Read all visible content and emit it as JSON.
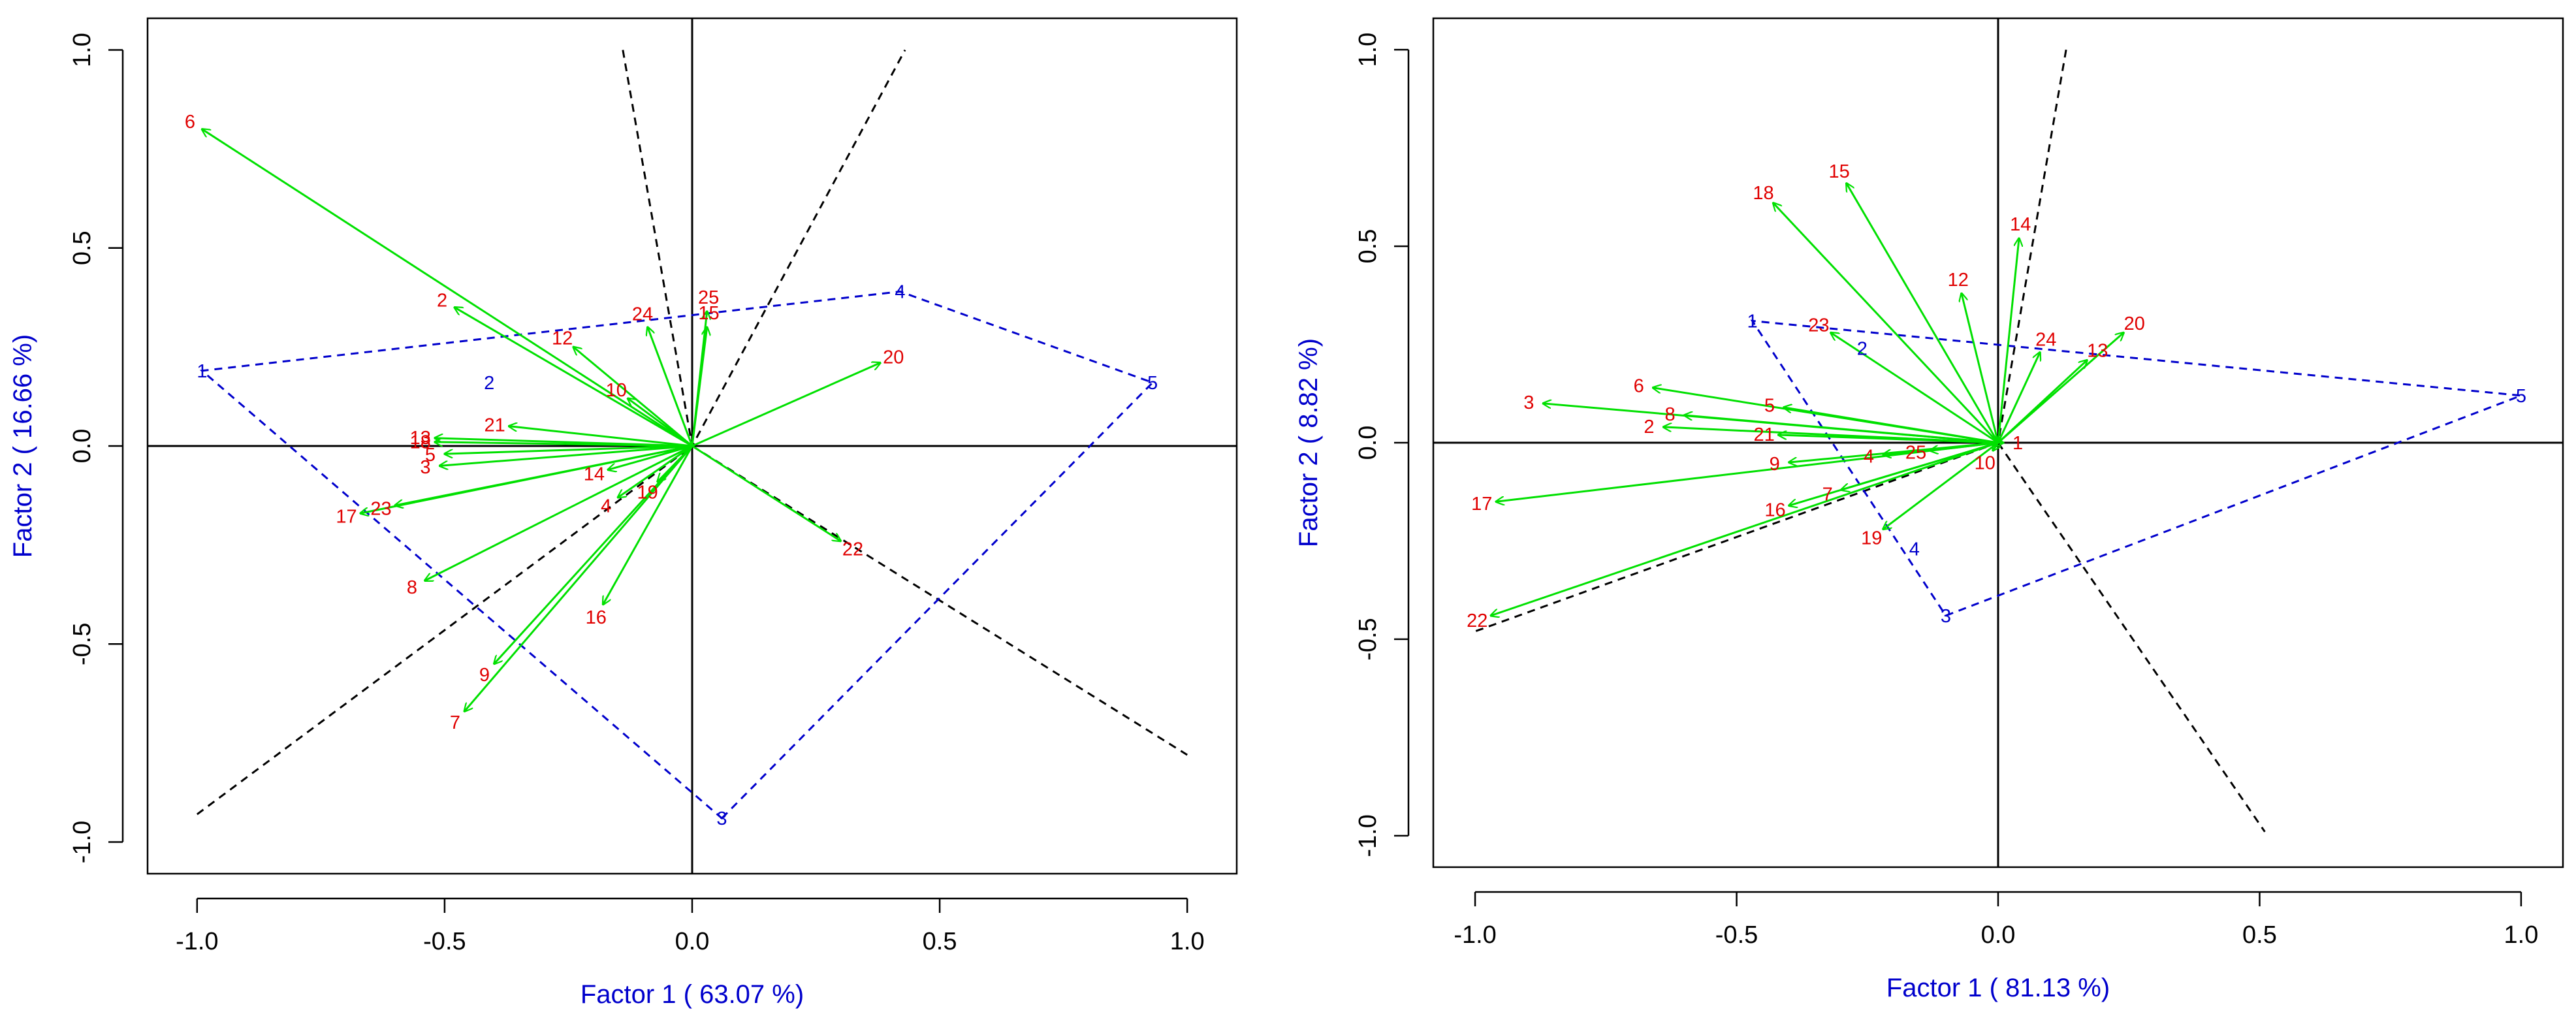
{
  "colors": {
    "arrow": "#00e000",
    "vector_label": "#e00000",
    "group": "#0000cc",
    "dashed": "#000000",
    "axis_title": "#0000cc"
  },
  "chart_data": [
    {
      "type": "biplot",
      "xlabel": "Factor 1 ( 63.07 %)",
      "ylabel": "Factor 2 ( 16.66 %)",
      "xlim": [
        -1.1,
        1.1
      ],
      "ylim": [
        -1.08,
        1.08
      ],
      "xticks": [
        "-1.0",
        "-0.5",
        "0.0",
        "0.5",
        "1.0"
      ],
      "yticks": [
        "-1.0",
        "-0.5",
        "0.0",
        "0.5",
        "1.0"
      ],
      "vectors": [
        {
          "label": "6",
          "x": -0.99,
          "y": 0.8
        },
        {
          "label": "2",
          "x": -0.48,
          "y": 0.35
        },
        {
          "label": "12",
          "x": -0.24,
          "y": 0.25
        },
        {
          "label": "24",
          "x": -0.09,
          "y": 0.3
        },
        {
          "label": "25",
          "x": 0.03,
          "y": 0.34
        },
        {
          "label": "15",
          "x": 0.03,
          "y": 0.3
        },
        {
          "label": "10",
          "x": -0.13,
          "y": 0.12
        },
        {
          "label": "20",
          "x": 0.38,
          "y": 0.21
        },
        {
          "label": "21",
          "x": -0.37,
          "y": 0.05
        },
        {
          "label": "13",
          "x": -0.52,
          "y": 0.02
        },
        {
          "label": "18",
          "x": -0.52,
          "y": 0.01
        },
        {
          "label": "5",
          "x": -0.5,
          "y": -0.02
        },
        {
          "label": "3",
          "x": -0.51,
          "y": -0.05
        },
        {
          "label": "14",
          "x": -0.17,
          "y": -0.06
        },
        {
          "label": "4",
          "x": -0.15,
          "y": -0.13
        },
        {
          "label": "19",
          "x": -0.07,
          "y": -0.09
        },
        {
          "label": "23",
          "x": -0.6,
          "y": -0.15
        },
        {
          "label": "17",
          "x": -0.67,
          "y": -0.17
        },
        {
          "label": "8",
          "x": -0.54,
          "y": -0.34
        },
        {
          "label": "16",
          "x": -0.18,
          "y": -0.4
        },
        {
          "label": "9",
          "x": -0.4,
          "y": -0.55
        },
        {
          "label": "7",
          "x": -0.46,
          "y": -0.67
        },
        {
          "label": "22",
          "x": 0.3,
          "y": -0.24
        }
      ],
      "group_points": [
        {
          "label": "1",
          "x": -0.99,
          "y": 0.19
        },
        {
          "label": "4",
          "x": 0.42,
          "y": 0.39
        },
        {
          "label": "5",
          "x": 0.93,
          "y": 0.16
        },
        {
          "label": "3",
          "x": 0.06,
          "y": -0.94
        }
      ],
      "group_centroids": [
        {
          "label": "2",
          "x": -0.41,
          "y": 0.16
        }
      ],
      "dashed_lines": [
        [
          [
            -0.14,
            1.0
          ],
          [
            0.0,
            0.0
          ],
          [
            0.43,
            1.0
          ]
        ],
        [
          [
            -1.0,
            -0.93
          ],
          [
            0.0,
            0.0
          ],
          [
            1.0,
            -0.78
          ]
        ]
      ]
    },
    {
      "type": "biplot",
      "xlabel": "Factor 1 ( 81.13 %)",
      "ylabel": "Factor 2 ( 8.82 %)",
      "xlim": [
        -1.08,
        1.08
      ],
      "ylim": [
        -1.08,
        1.08
      ],
      "xticks": [
        "-1.0",
        "-0.5",
        "0.0",
        "0.5",
        "1.0"
      ],
      "yticks": [
        "-1.0",
        "-0.5",
        "0.0",
        "0.5",
        "1.0"
      ],
      "vectors": [
        {
          "label": "18",
          "x": -0.43,
          "y": 0.61
        },
        {
          "label": "15",
          "x": -0.29,
          "y": 0.66
        },
        {
          "label": "14",
          "x": 0.04,
          "y": 0.52
        },
        {
          "label": "12",
          "x": -0.07,
          "y": 0.38
        },
        {
          "label": "23",
          "x": -0.32,
          "y": 0.28
        },
        {
          "label": "20",
          "x": 0.24,
          "y": 0.28
        },
        {
          "label": "13",
          "x": 0.17,
          "y": 0.21
        },
        {
          "label": "24",
          "x": 0.08,
          "y": 0.23
        },
        {
          "label": "3",
          "x": -0.87,
          "y": 0.1
        },
        {
          "label": "6",
          "x": -0.66,
          "y": 0.14
        },
        {
          "label": "8",
          "x": -0.6,
          "y": 0.07
        },
        {
          "label": "5",
          "x": -0.41,
          "y": 0.09
        },
        {
          "label": "2",
          "x": -0.64,
          "y": 0.04
        },
        {
          "label": "21",
          "x": -0.42,
          "y": 0.02
        },
        {
          "label": "9",
          "x": -0.4,
          "y": -0.05
        },
        {
          "label": "4",
          "x": -0.22,
          "y": -0.03
        },
        {
          "label": "25",
          "x": -0.13,
          "y": -0.02
        },
        {
          "label": "1",
          "x": 0.01,
          "y": 0.0
        },
        {
          "label": "10",
          "x": -0.01,
          "y": -0.02
        },
        {
          "label": "7",
          "x": -0.3,
          "y": -0.12
        },
        {
          "label": "16",
          "x": -0.4,
          "y": -0.16
        },
        {
          "label": "19",
          "x": -0.22,
          "y": -0.22
        },
        {
          "label": "17",
          "x": -0.96,
          "y": -0.15
        },
        {
          "label": "22",
          "x": -0.97,
          "y": -0.44
        }
      ],
      "group_points": [
        {
          "label": "1",
          "x": -0.47,
          "y": 0.31
        },
        {
          "label": "5",
          "x": 1.0,
          "y": 0.12
        },
        {
          "label": "3",
          "x": -0.1,
          "y": -0.44
        }
      ],
      "group_centroids": [
        {
          "label": "2",
          "x": -0.26,
          "y": 0.24
        },
        {
          "label": "4",
          "x": -0.16,
          "y": -0.27
        }
      ],
      "dashed_lines": [
        [
          [
            0.13,
            1.0
          ],
          [
            0.0,
            0.0
          ],
          [
            -1.0,
            -0.48
          ]
        ],
        [
          [
            0.0,
            0.0
          ],
          [
            0.51,
            -0.99
          ]
        ]
      ]
    }
  ]
}
